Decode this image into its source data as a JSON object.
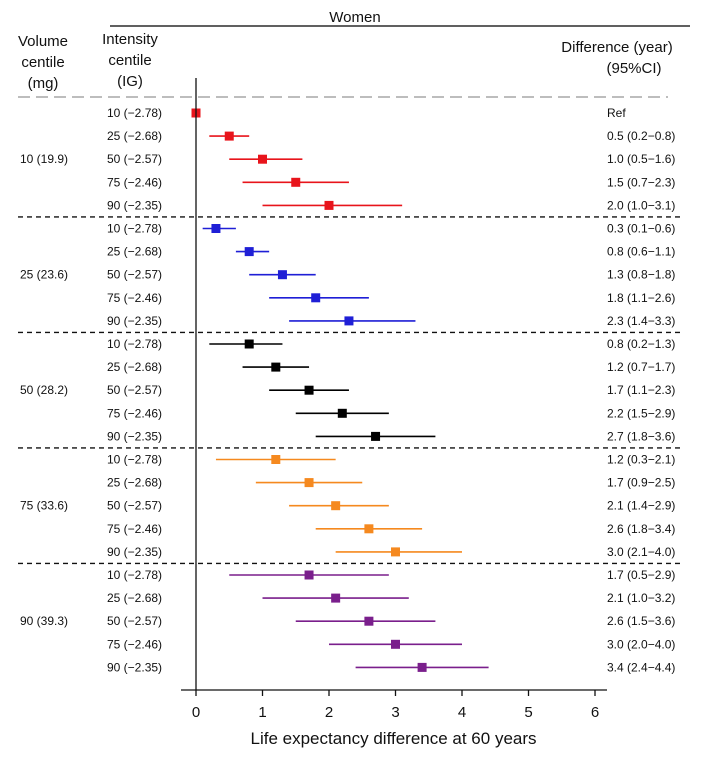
{
  "chart_data": {
    "type": "forest",
    "title": "Women",
    "xlabel": "Life expectancy difference at 60 years",
    "xlim": [
      0,
      6
    ],
    "xticks": [
      0,
      1,
      2,
      3,
      4,
      5,
      6
    ],
    "headers": {
      "volume": [
        "Volume",
        "centile",
        "(mg)"
      ],
      "intensity": [
        "Intensity",
        "centile",
        "(IG)"
      ],
      "difference": [
        "Difference (year)",
        "(95%CI)"
      ]
    },
    "groups": [
      {
        "label": "10 (19.9)",
        "color": "#e8141b",
        "rows": [
          {
            "label": "10 (−2.78)",
            "estimate": 0.0,
            "lower": 0.0,
            "upper": 0.0,
            "text": "Ref"
          },
          {
            "label": "25 (−2.68)",
            "estimate": 0.5,
            "lower": 0.2,
            "upper": 0.8,
            "text": "0.5 (0.2−0.8)"
          },
          {
            "label": "50 (−2.57)",
            "estimate": 1.0,
            "lower": 0.5,
            "upper": 1.6,
            "text": "1.0 (0.5−1.6)"
          },
          {
            "label": "75 (−2.46)",
            "estimate": 1.5,
            "lower": 0.7,
            "upper": 2.3,
            "text": "1.5 (0.7−2.3)"
          },
          {
            "label": "90 (−2.35)",
            "estimate": 2.0,
            "lower": 1.0,
            "upper": 3.1,
            "text": "2.0 (1.0−3.1)"
          }
        ]
      },
      {
        "label": "25 (23.6)",
        "color": "#1f1fd6",
        "rows": [
          {
            "label": "10 (−2.78)",
            "estimate": 0.3,
            "lower": 0.1,
            "upper": 0.6,
            "text": "0.3 (0.1−0.6)"
          },
          {
            "label": "25 (−2.68)",
            "estimate": 0.8,
            "lower": 0.6,
            "upper": 1.1,
            "text": "0.8 (0.6−1.1)"
          },
          {
            "label": "50 (−2.57)",
            "estimate": 1.3,
            "lower": 0.8,
            "upper": 1.8,
            "text": "1.3 (0.8−1.8)"
          },
          {
            "label": "75 (−2.46)",
            "estimate": 1.8,
            "lower": 1.1,
            "upper": 2.6,
            "text": "1.8 (1.1−2.6)"
          },
          {
            "label": "90 (−2.35)",
            "estimate": 2.3,
            "lower": 1.4,
            "upper": 3.3,
            "text": "2.3 (1.4−3.3)"
          }
        ]
      },
      {
        "label": "50 (28.2)",
        "color": "#000000",
        "rows": [
          {
            "label": "10 (−2.78)",
            "estimate": 0.8,
            "lower": 0.2,
            "upper": 1.3,
            "text": "0.8 (0.2−1.3)"
          },
          {
            "label": "25 (−2.68)",
            "estimate": 1.2,
            "lower": 0.7,
            "upper": 1.7,
            "text": "1.2 (0.7−1.7)"
          },
          {
            "label": "50 (−2.57)",
            "estimate": 1.7,
            "lower": 1.1,
            "upper": 2.3,
            "text": "1.7 (1.1−2.3)"
          },
          {
            "label": "75 (−2.46)",
            "estimate": 2.2,
            "lower": 1.5,
            "upper": 2.9,
            "text": "2.2 (1.5−2.9)"
          },
          {
            "label": "90 (−2.35)",
            "estimate": 2.7,
            "lower": 1.8,
            "upper": 3.6,
            "text": "2.7 (1.8−3.6)"
          }
        ]
      },
      {
        "label": "75 (33.6)",
        "color": "#f5891f",
        "rows": [
          {
            "label": "10 (−2.78)",
            "estimate": 1.2,
            "lower": 0.3,
            "upper": 2.1,
            "text": "1.2 (0.3−2.1)"
          },
          {
            "label": "25 (−2.68)",
            "estimate": 1.7,
            "lower": 0.9,
            "upper": 2.5,
            "text": "1.7 (0.9−2.5)"
          },
          {
            "label": "50 (−2.57)",
            "estimate": 2.1,
            "lower": 1.4,
            "upper": 2.9,
            "text": "2.1 (1.4−2.9)"
          },
          {
            "label": "75 (−2.46)",
            "estimate": 2.6,
            "lower": 1.8,
            "upper": 3.4,
            "text": "2.6 (1.8−3.4)"
          },
          {
            "label": "90 (−2.35)",
            "estimate": 3.0,
            "lower": 2.1,
            "upper": 4.0,
            "text": "3.0 (2.1−4.0)"
          }
        ]
      },
      {
        "label": "90 (39.3)",
        "color": "#7a1f8c",
        "rows": [
          {
            "label": "10 (−2.78)",
            "estimate": 1.7,
            "lower": 0.5,
            "upper": 2.9,
            "text": "1.7 (0.5−2.9)"
          },
          {
            "label": "25 (−2.68)",
            "estimate": 2.1,
            "lower": 1.0,
            "upper": 3.2,
            "text": "2.1 (1.0−3.2)"
          },
          {
            "label": "50 (−2.57)",
            "estimate": 2.6,
            "lower": 1.5,
            "upper": 3.6,
            "text": "2.6 (1.5−3.6)"
          },
          {
            "label": "75 (−2.46)",
            "estimate": 3.0,
            "lower": 2.0,
            "upper": 4.0,
            "text": "3.0 (2.0−4.0)"
          },
          {
            "label": "90 (−2.35)",
            "estimate": 3.4,
            "lower": 2.4,
            "upper": 4.4,
            "text": "3.4 (2.4−4.4)"
          }
        ]
      }
    ]
  }
}
